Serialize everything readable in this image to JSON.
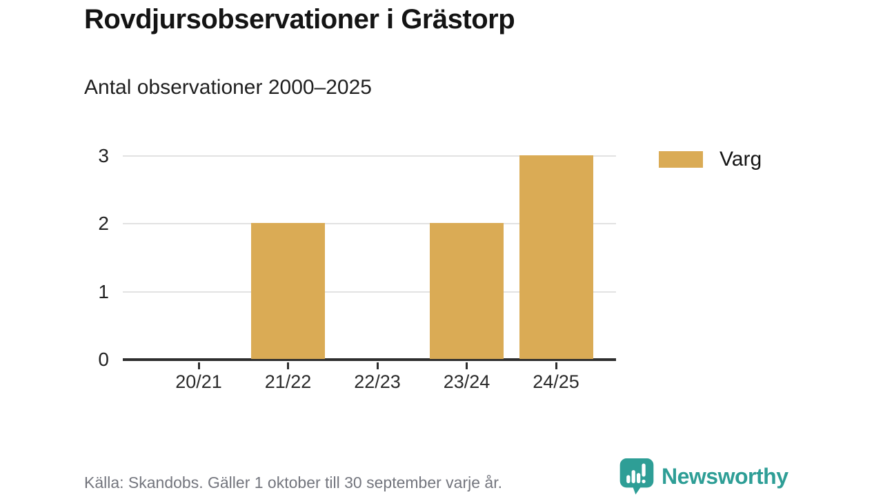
{
  "header": {
    "title": "Rovdjursobservationer i Grästorp",
    "subtitle": "Antal observationer 2000–2025"
  },
  "chart_data": {
    "type": "bar",
    "categories": [
      "20/21",
      "21/22",
      "22/23",
      "23/24",
      "24/25"
    ],
    "series": [
      {
        "name": "Varg",
        "values": [
          0,
          2,
          0,
          2,
          3
        ]
      }
    ],
    "title": "Rovdjursobservationer i Grästorp",
    "subtitle": "Antal observationer 2000–2025",
    "xlabel": "",
    "ylabel": "",
    "yticks": [
      0,
      1,
      2,
      3
    ],
    "ylim": [
      0,
      3
    ],
    "grid": true,
    "legend_position": "right",
    "bar_color": "#DAAB55"
  },
  "legend": {
    "items": [
      {
        "label": "Varg",
        "color": "#DAAB55"
      }
    ]
  },
  "footer": {
    "source": "Källa: Skandobs. Gäller 1 oktober till 30 september varje år.",
    "brand": "Newsworthy",
    "brand_color": "#2E9E96"
  }
}
